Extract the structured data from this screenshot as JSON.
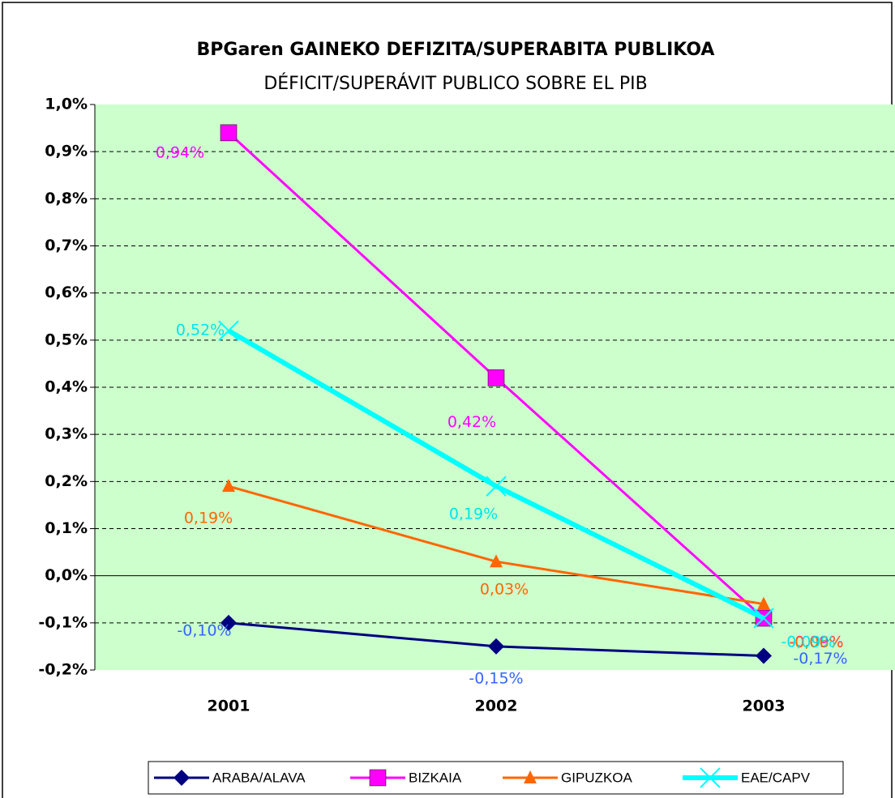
{
  "chart_data": {
    "type": "line",
    "title": "BPGaren GAINEKO DEFIZITA/SUPERABITA PUBLIKOA",
    "subtitle": "DÉFICIT/SUPERÁVIT PUBLICO SOBRE EL PIB",
    "categories": [
      "2001",
      "2002",
      "2003"
    ],
    "series": [
      {
        "name": "ARABA/ALAVA",
        "color": "#000080",
        "label_color": "#3366ff",
        "marker": "diamond",
        "values": [
          -0.1,
          -0.15,
          -0.17
        ],
        "value_labels": [
          "-0,10%",
          "-0,15%",
          "-0,17%"
        ]
      },
      {
        "name": "BIZKAIA",
        "color": "#ff00ff",
        "label_color": "#ff00ff",
        "marker": "square",
        "values": [
          0.94,
          0.42,
          -0.09
        ],
        "value_labels": [
          "0,94%",
          "0,42%",
          "-0,09%"
        ]
      },
      {
        "name": "GIPUZKOA",
        "color": "#ff6600",
        "label_color": "#ff6600",
        "marker": "triangle",
        "values": [
          0.19,
          0.03,
          -0.06
        ],
        "value_labels": [
          "0,19%",
          "0,03%",
          "-0,06%"
        ]
      },
      {
        "name": "EAE/CAPV",
        "color": "#00ffff",
        "label_color": "#00e5ee",
        "marker": "x",
        "values": [
          0.52,
          0.19,
          -0.09
        ],
        "value_labels": [
          "0,52%",
          "0,19%",
          "-0,09%"
        ]
      }
    ],
    "ylim": [
      -0.2,
      1.0
    ],
    "yticks": [
      {
        "value": -0.2,
        "label": "-0,2%"
      },
      {
        "value": -0.1,
        "label": "-0,1%"
      },
      {
        "value": 0.0,
        "label": "0,0%"
      },
      {
        "value": 0.1,
        "label": "0,1%"
      },
      {
        "value": 0.2,
        "label": "0,2%"
      },
      {
        "value": 0.3,
        "label": "0,3%"
      },
      {
        "value": 0.4,
        "label": "0,4%"
      },
      {
        "value": 0.5,
        "label": "0,5%"
      },
      {
        "value": 0.6,
        "label": "0,6%"
      },
      {
        "value": 0.7,
        "label": "0,7%"
      },
      {
        "value": 0.8,
        "label": "0,8%"
      },
      {
        "value": 0.9,
        "label": "0,9%"
      },
      {
        "value": 1.0,
        "label": "1,0%"
      }
    ],
    "grid": true,
    "legend": "bottom",
    "plot_background": "#ccffcc"
  }
}
